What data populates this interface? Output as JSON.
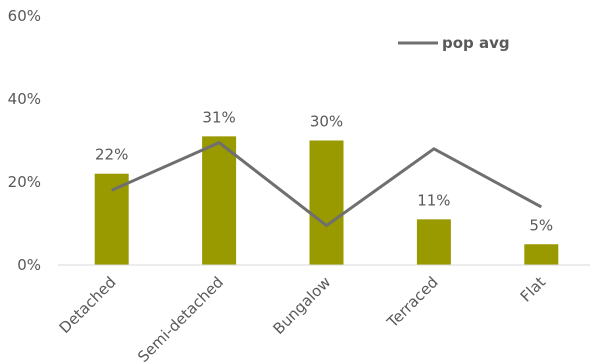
{
  "chart_data": {
    "type": "bar",
    "categories": [
      "Detached",
      "Semi-detached",
      "Bungalow",
      "Terraced",
      "Flat"
    ],
    "series": [
      {
        "type": "bar",
        "values": [
          22,
          31,
          30,
          11,
          5
        ],
        "data_labels": [
          "22%",
          "31%",
          "30%",
          "11%",
          "5%"
        ],
        "color": "#999900"
      },
      {
        "name": "pop avg",
        "type": "line",
        "values": [
          18,
          29.5,
          9.5,
          28,
          14
        ],
        "color": "#6f6f6f"
      }
    ],
    "y_ticks": [
      "0%",
      "20%",
      "40%",
      "60%"
    ],
    "ylim": [
      0,
      60
    ],
    "grid": false,
    "legend": "top-right"
  }
}
